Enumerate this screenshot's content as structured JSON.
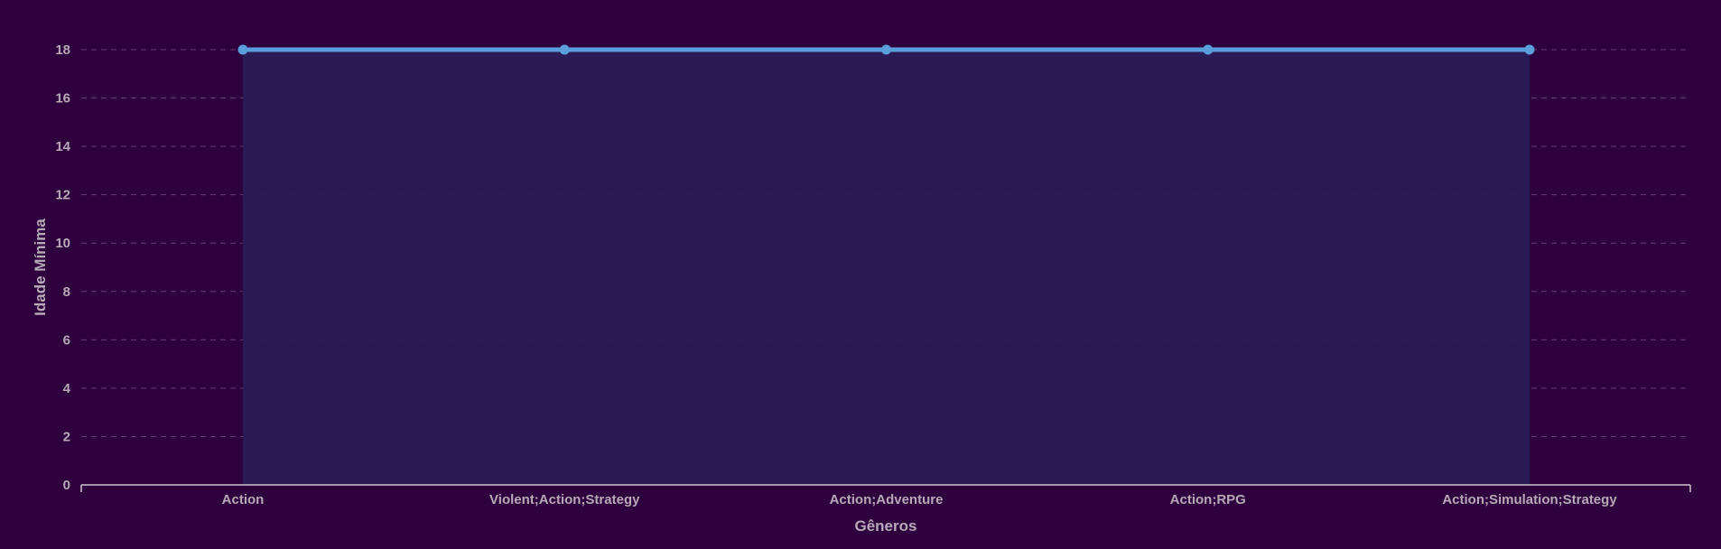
{
  "chart_data": {
    "type": "area",
    "categories": [
      "Action",
      "Violent;Action;Strategy",
      "Action;Adventure",
      "Action;RPG",
      "Action;Simulation;Strategy"
    ],
    "values": [
      18,
      18,
      18,
      18,
      18
    ],
    "xlabel": "Gêneros",
    "ylabel": "Idade Mínima",
    "ylim": [
      0,
      18
    ],
    "yticks": [
      "0",
      "2",
      "4",
      "6",
      "8",
      "10",
      "12",
      "14",
      "16",
      "18"
    ],
    "grid": true,
    "legend": "none",
    "colors": {
      "background": "#2e003e",
      "line": "#5a9fdc",
      "fill": "#2a1c58",
      "grid": "#6a3a6e",
      "text": "#b7a9b7",
      "axis": "#cfc4cf"
    }
  }
}
